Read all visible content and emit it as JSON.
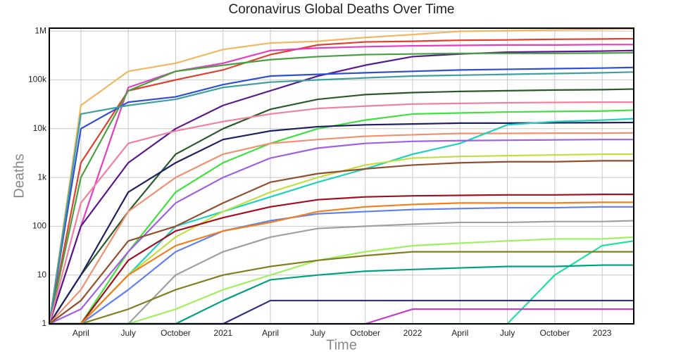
{
  "chart_data": {
    "type": "line",
    "title": "Coronavirus Global Deaths Over Time",
    "xlabel": "Time",
    "ylabel": "Deaths",
    "log_y": true,
    "grid": true,
    "xlim": [
      "2020-02",
      "2023-03"
    ],
    "xticks": [
      {
        "value": "2020-04",
        "label": "April"
      },
      {
        "value": "2020-07",
        "label": "July"
      },
      {
        "value": "2020-10",
        "label": "October"
      },
      {
        "value": "2021-01",
        "label": "2021"
      },
      {
        "value": "2021-04",
        "label": "April"
      },
      {
        "value": "2021-07",
        "label": "July"
      },
      {
        "value": "2021-10",
        "label": "October"
      },
      {
        "value": "2022-01",
        "label": "2022"
      },
      {
        "value": "2022-04",
        "label": "April"
      },
      {
        "value": "2022-07",
        "label": "July"
      },
      {
        "value": "2022-10",
        "label": "October"
      },
      {
        "value": "2023-01",
        "label": "2023"
      }
    ],
    "ylim": [
      1,
      1150000
    ],
    "yticks": [
      1,
      10,
      100,
      {
        "value": 1000,
        "label": "1k"
      },
      {
        "value": 10000,
        "label": "10k"
      },
      {
        "value": 100000,
        "label": "100k"
      },
      {
        "value": 1000000,
        "label": "1M"
      }
    ],
    "x": [
      "2020-02",
      "2020-04",
      "2020-07",
      "2020-10",
      "2021-01",
      "2021-04",
      "2021-07",
      "2021-10",
      "2022-01",
      "2022-04",
      "2022-07",
      "2022-10",
      "2023-01",
      "2023-03"
    ],
    "series": [
      {
        "color": "#f0b860",
        "values": [
          1,
          30000,
          150000,
          220000,
          420000,
          570000,
          620000,
          740000,
          850000,
          990000,
          1020000,
          1060000,
          1090000,
          1120000
        ]
      },
      {
        "color": "#e04030",
        "values": [
          1,
          2000,
          60000,
          100000,
          160000,
          330000,
          520000,
          600000,
          620000,
          650000,
          660000,
          680000,
          690000,
          700000
        ]
      },
      {
        "color": "#e040c0",
        "values": [
          1,
          100,
          70000,
          150000,
          220000,
          400000,
          450000,
          480000,
          500000,
          510000,
          520000,
          520000,
          530000,
          530000
        ]
      },
      {
        "color": "#5a1a8a",
        "values": [
          1,
          100,
          2000,
          10000,
          30000,
          60000,
          120000,
          200000,
          300000,
          340000,
          370000,
          380000,
          390000,
          400000
        ]
      },
      {
        "color": "#4aa040",
        "values": [
          1,
          1000,
          60000,
          150000,
          200000,
          260000,
          300000,
          330000,
          340000,
          350000,
          350000,
          350000,
          355000,
          360000
        ]
      },
      {
        "color": "#3050d0",
        "values": [
          1,
          10000,
          35000,
          45000,
          80000,
          120000,
          130000,
          140000,
          150000,
          160000,
          165000,
          170000,
          175000,
          180000
        ]
      },
      {
        "color": "#40a0a0",
        "values": [
          1,
          20000,
          30000,
          40000,
          70000,
          90000,
          100000,
          110000,
          120000,
          125000,
          130000,
          135000,
          140000,
          145000
        ]
      },
      {
        "color": "#2a5a2a",
        "values": [
          1,
          10,
          200,
          3000,
          10000,
          25000,
          40000,
          50000,
          55000,
          58000,
          60000,
          62000,
          63000,
          65000
        ]
      },
      {
        "color": "#40e040",
        "values": [
          1,
          1,
          30,
          500,
          2000,
          5000,
          10000,
          15000,
          20000,
          21000,
          22000,
          22500,
          23000,
          24000
        ]
      },
      {
        "color": "#f080a0",
        "values": [
          1,
          300,
          5000,
          9000,
          14000,
          20000,
          26000,
          29000,
          32000,
          33000,
          34000,
          34500,
          35000,
          35000
        ]
      },
      {
        "color": "#202060",
        "values": [
          1,
          10,
          500,
          2000,
          6000,
          9000,
          11000,
          12000,
          12500,
          13000,
          13000,
          13200,
          13300,
          13400
        ]
      },
      {
        "color": "#f09070",
        "values": [
          1,
          5,
          200,
          1000,
          3000,
          5000,
          6000,
          7000,
          7500,
          8000,
          8000,
          8100,
          8100,
          8200
        ]
      },
      {
        "color": "#20d0c0",
        "values": [
          1,
          1,
          10,
          100,
          200,
          400,
          800,
          1500,
          3000,
          5000,
          12000,
          14000,
          15000,
          16000
        ]
      },
      {
        "color": "#a060e0",
        "values": [
          1,
          2,
          30,
          300,
          1000,
          2500,
          4000,
          5000,
          5500,
          5700,
          5800,
          5900,
          6000,
          6000
        ]
      },
      {
        "color": "#c0e040",
        "values": [
          1,
          1,
          10,
          60,
          200,
          500,
          1000,
          1800,
          2500,
          2700,
          2800,
          2900,
          3000,
          3000
        ]
      },
      {
        "color": "#905030",
        "values": [
          1,
          3,
          50,
          100,
          300,
          800,
          1200,
          1500,
          1800,
          2000,
          2100,
          2100,
          2200,
          2200
        ]
      },
      {
        "color": "#a01020",
        "values": [
          1,
          1,
          20,
          80,
          150,
          250,
          350,
          400,
          420,
          430,
          440,
          440,
          450,
          450
        ]
      },
      {
        "color": "#6080f0",
        "values": [
          1,
          1,
          5,
          30,
          80,
          130,
          180,
          200,
          220,
          230,
          240,
          240,
          250,
          250
        ]
      },
      {
        "color": "#a0a0a0",
        "values": [
          1,
          1,
          1,
          10,
          30,
          60,
          90,
          100,
          110,
          120,
          120,
          125,
          125,
          130
        ]
      },
      {
        "color": "#a0f060",
        "values": [
          1,
          1,
          1,
          2,
          5,
          10,
          20,
          30,
          40,
          45,
          50,
          55,
          55,
          60
        ]
      },
      {
        "color": "#20e0a0",
        "values": [
          1,
          1,
          1,
          1,
          1,
          1,
          1,
          1,
          1,
          1,
          1,
          10,
          40,
          50
        ]
      },
      {
        "color": "#808020",
        "values": [
          1,
          1,
          2,
          5,
          10,
          15,
          20,
          25,
          30,
          30,
          30,
          30,
          30,
          30
        ]
      },
      {
        "color": "#c040c0",
        "values": [
          1,
          1,
          1,
          1,
          1,
          1,
          1,
          1,
          2,
          2,
          2,
          2,
          2,
          2
        ]
      },
      {
        "color": "#303080",
        "values": [
          1,
          1,
          1,
          1,
          1,
          3,
          3,
          3,
          3,
          3,
          3,
          3,
          3,
          3
        ]
      },
      {
        "color": "#f08020",
        "values": [
          1,
          1,
          10,
          40,
          80,
          120,
          200,
          250,
          280,
          300,
          300,
          300,
          310,
          310
        ]
      },
      {
        "color": "#00a080",
        "values": [
          1,
          1,
          1,
          1,
          3,
          8,
          10,
          12,
          13,
          14,
          15,
          15,
          16,
          16
        ]
      }
    ]
  }
}
